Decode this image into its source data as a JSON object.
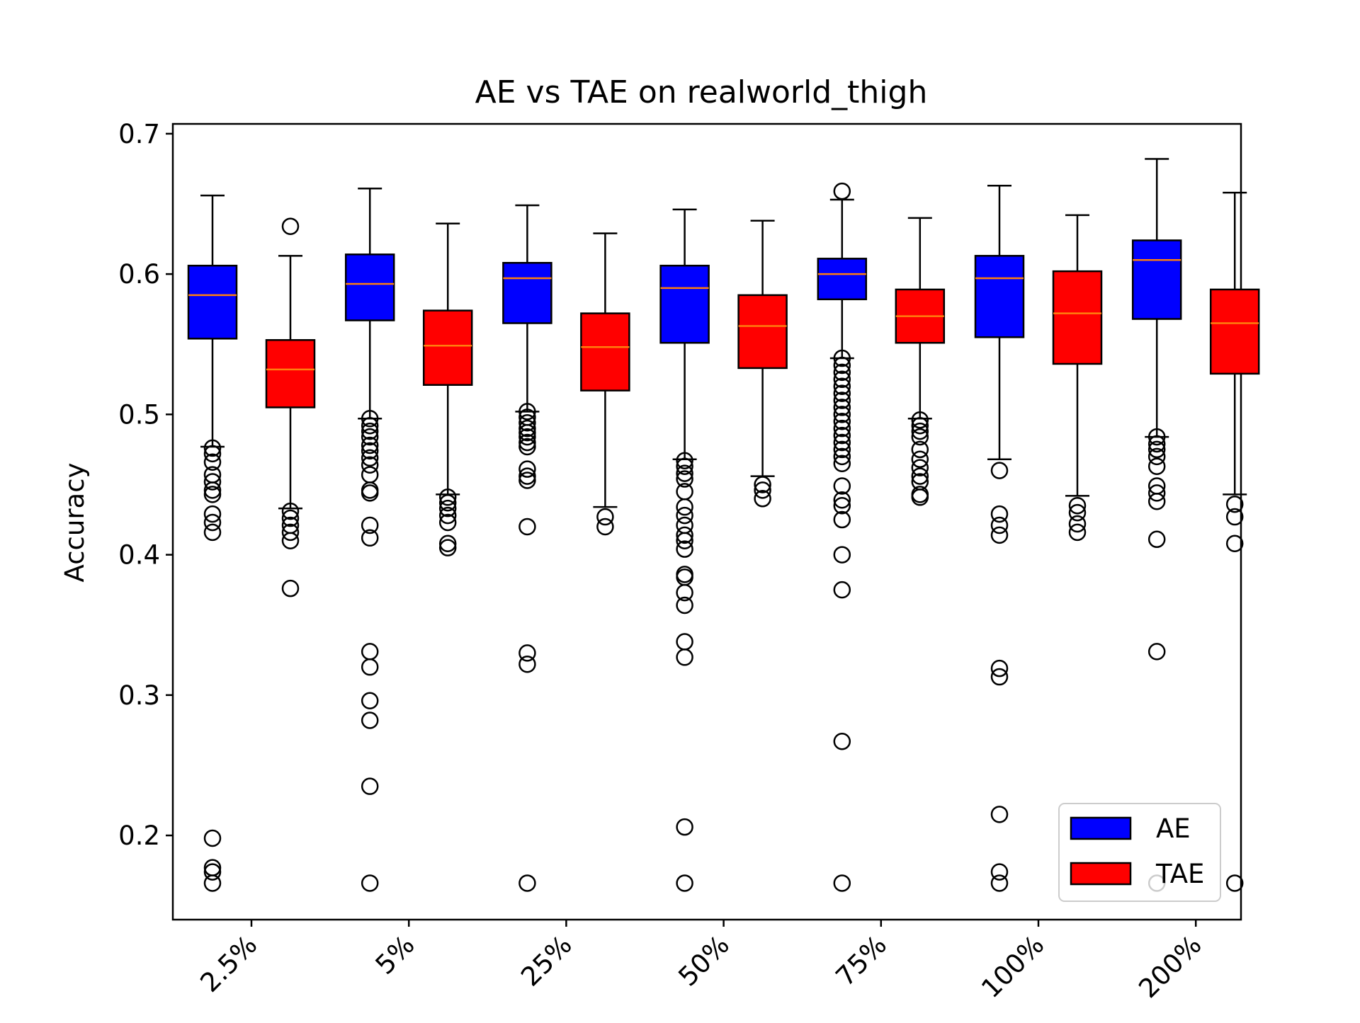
{
  "chart_data": {
    "type": "box",
    "title": "AE vs TAE on realworld_thigh",
    "xlabel": "",
    "ylabel": "Accuracy",
    "ylim": [
      0.14,
      0.707
    ],
    "y_ticks": [
      0.2,
      0.3,
      0.4,
      0.5,
      0.6,
      0.7
    ],
    "y_tick_labels": [
      "0.2",
      "0.3",
      "0.4",
      "0.5",
      "0.6",
      "0.7"
    ],
    "categories": [
      "2.5%",
      "5%",
      "25%",
      "50%",
      "75%",
      "100%",
      "200%"
    ],
    "legend": {
      "position": "lower right",
      "entries": [
        "AE",
        "TAE"
      ]
    },
    "series": [
      {
        "name": "AE",
        "color": "#0000ff",
        "median_color": "#ff7f0e",
        "boxes": [
          {
            "whislo": 0.477,
            "q1": 0.554,
            "med": 0.585,
            "q3": 0.606,
            "whishi": 0.656,
            "fliers": [
              0.476,
              0.472,
              0.466,
              0.457,
              0.452,
              0.446,
              0.443,
              0.429,
              0.423,
              0.416,
              0.198,
              0.177,
              0.174,
              0.166
            ]
          },
          {
            "whislo": 0.497,
            "q1": 0.567,
            "med": 0.593,
            "q3": 0.614,
            "whishi": 0.661,
            "fliers": [
              0.497,
              0.492,
              0.488,
              0.484,
              0.478,
              0.474,
              0.469,
              0.464,
              0.457,
              0.446,
              0.444,
              0.421,
              0.412,
              0.331,
              0.32,
              0.296,
              0.282,
              0.235,
              0.166
            ]
          },
          {
            "whislo": 0.502,
            "q1": 0.565,
            "med": 0.597,
            "q3": 0.608,
            "whishi": 0.649,
            "fliers": [
              0.502,
              0.498,
              0.494,
              0.49,
              0.487,
              0.484,
              0.48,
              0.477,
              0.461,
              0.456,
              0.453,
              0.42,
              0.33,
              0.322,
              0.166
            ]
          },
          {
            "whislo": 0.468,
            "q1": 0.551,
            "med": 0.59,
            "q3": 0.606,
            "whishi": 0.646,
            "fliers": [
              0.467,
              0.463,
              0.458,
              0.454,
              0.445,
              0.434,
              0.428,
              0.421,
              0.414,
              0.41,
              0.404,
              0.386,
              0.384,
              0.373,
              0.364,
              0.338,
              0.327,
              0.206,
              0.166
            ]
          },
          {
            "whislo": 0.54,
            "q1": 0.582,
            "med": 0.6,
            "q3": 0.611,
            "whishi": 0.653,
            "fliers": [
              0.659,
              0.54,
              0.535,
              0.53,
              0.525,
              0.52,
              0.515,
              0.51,
              0.505,
              0.5,
              0.495,
              0.49,
              0.485,
              0.48,
              0.475,
              0.47,
              0.465,
              0.449,
              0.439,
              0.435,
              0.425,
              0.4,
              0.375,
              0.267,
              0.166
            ]
          },
          {
            "whislo": 0.468,
            "q1": 0.555,
            "med": 0.597,
            "q3": 0.613,
            "whishi": 0.663,
            "fliers": [
              0.46,
              0.429,
              0.421,
              0.414,
              0.319,
              0.313,
              0.215,
              0.174,
              0.166
            ]
          },
          {
            "whislo": 0.484,
            "q1": 0.568,
            "med": 0.61,
            "q3": 0.624,
            "whishi": 0.682,
            "fliers": [
              0.484,
              0.479,
              0.475,
              0.47,
              0.463,
              0.449,
              0.444,
              0.438,
              0.411,
              0.331,
              0.166
            ]
          }
        ]
      },
      {
        "name": "TAE",
        "color": "#ff0000",
        "median_color": "#ff7f0e",
        "boxes": [
          {
            "whislo": 0.433,
            "q1": 0.505,
            "med": 0.532,
            "q3": 0.553,
            "whishi": 0.613,
            "fliers": [
              0.634,
              0.431,
              0.426,
              0.421,
              0.416,
              0.41,
              0.376
            ]
          },
          {
            "whislo": 0.443,
            "q1": 0.521,
            "med": 0.549,
            "q3": 0.574,
            "whishi": 0.636,
            "fliers": [
              0.441,
              0.437,
              0.433,
              0.428,
              0.423,
              0.408,
              0.405
            ]
          },
          {
            "whislo": 0.434,
            "q1": 0.517,
            "med": 0.548,
            "q3": 0.572,
            "whishi": 0.629,
            "fliers": [
              0.427,
              0.42
            ]
          },
          {
            "whislo": 0.456,
            "q1": 0.533,
            "med": 0.563,
            "q3": 0.585,
            "whishi": 0.638,
            "fliers": [
              0.45,
              0.446,
              0.44
            ]
          },
          {
            "whislo": 0.497,
            "q1": 0.551,
            "med": 0.57,
            "q3": 0.589,
            "whishi": 0.64,
            "fliers": [
              0.496,
              0.492,
              0.488,
              0.484,
              0.475,
              0.468,
              0.462,
              0.456,
              0.452,
              0.443,
              0.441
            ]
          },
          {
            "whislo": 0.442,
            "q1": 0.536,
            "med": 0.572,
            "q3": 0.602,
            "whishi": 0.642,
            "fliers": [
              0.435,
              0.43,
              0.422,
              0.416
            ]
          },
          {
            "whislo": 0.443,
            "q1": 0.529,
            "med": 0.565,
            "q3": 0.589,
            "whishi": 0.658,
            "fliers": [
              0.436,
              0.427,
              0.408,
              0.166
            ]
          }
        ]
      }
    ]
  }
}
